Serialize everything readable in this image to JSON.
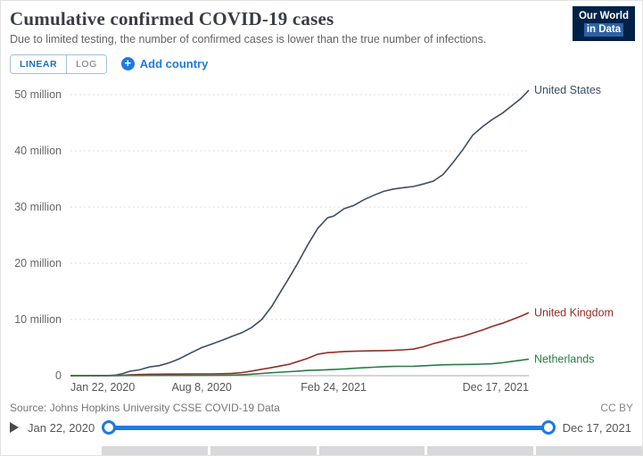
{
  "header": {
    "title": "Cumulative confirmed COVID-19 cases",
    "subtitle": "Due to limited testing, the number of confirmed cases is lower than the true number of infections.",
    "logo": {
      "line1": "Our World",
      "line2": "in Data"
    }
  },
  "controls": {
    "linear": "LINEAR",
    "log": "LOG",
    "add_country": "Add country"
  },
  "chart_data": {
    "type": "line",
    "title": "Cumulative confirmed COVID-19 cases",
    "x_unit": "days since Jan 22, 2020",
    "y_unit": "million cases",
    "x_range": [
      0,
      695
    ],
    "ylim": [
      0,
      52
    ],
    "grid": "horizontal-dashed",
    "legend_position": "line-end-labels",
    "y_ticks": [
      {
        "value": 0,
        "label": "0"
      },
      {
        "value": 10,
        "label": "10 million"
      },
      {
        "value": 20,
        "label": "20 million"
      },
      {
        "value": 30,
        "label": "30 million"
      },
      {
        "value": 40,
        "label": "40 million"
      },
      {
        "value": 50,
        "label": "50 million"
      }
    ],
    "x_ticks": [
      {
        "value": 0,
        "label": "Jan 22, 2020"
      },
      {
        "value": 199,
        "label": "Aug 8, 2020"
      },
      {
        "value": 399,
        "label": "Feb 24, 2021"
      },
      {
        "value": 695,
        "label": "Dec 17, 2021"
      }
    ],
    "series": [
      {
        "name": "United States",
        "color": "#3c4e66",
        "points": [
          [
            0,
            0
          ],
          [
            45,
            0.003
          ],
          [
            60,
            0.03
          ],
          [
            70,
            0.12
          ],
          [
            80,
            0.4
          ],
          [
            90,
            0.8
          ],
          [
            105,
            1.05
          ],
          [
            120,
            1.55
          ],
          [
            135,
            1.8
          ],
          [
            150,
            2.3
          ],
          [
            165,
            3.0
          ],
          [
            180,
            3.9
          ],
          [
            199,
            5.0
          ],
          [
            215,
            5.65
          ],
          [
            230,
            6.3
          ],
          [
            245,
            7.0
          ],
          [
            260,
            7.65
          ],
          [
            275,
            8.6
          ],
          [
            290,
            10.0
          ],
          [
            305,
            12.3
          ],
          [
            320,
            15.2
          ],
          [
            332,
            17.5
          ],
          [
            344,
            19.9
          ],
          [
            360,
            23.3
          ],
          [
            375,
            26.2
          ],
          [
            390,
            28.1
          ],
          [
            399,
            28.4
          ],
          [
            415,
            29.7
          ],
          [
            430,
            30.3
          ],
          [
            445,
            31.3
          ],
          [
            460,
            32.1
          ],
          [
            475,
            32.8
          ],
          [
            490,
            33.2
          ],
          [
            505,
            33.45
          ],
          [
            520,
            33.65
          ],
          [
            535,
            34.1
          ],
          [
            550,
            34.6
          ],
          [
            565,
            35.8
          ],
          [
            580,
            37.9
          ],
          [
            595,
            40.2
          ],
          [
            610,
            42.8
          ],
          [
            625,
            44.3
          ],
          [
            640,
            45.6
          ],
          [
            655,
            46.7
          ],
          [
            670,
            48.1
          ],
          [
            683,
            49.3
          ],
          [
            695,
            50.8
          ]
        ]
      },
      {
        "name": "United Kingdom",
        "color": "#942e27",
        "points": [
          [
            0,
            0
          ],
          [
            60,
            0.005
          ],
          [
            75,
            0.03
          ],
          [
            90,
            0.14
          ],
          [
            105,
            0.21
          ],
          [
            120,
            0.25
          ],
          [
            135,
            0.27
          ],
          [
            150,
            0.28
          ],
          [
            165,
            0.29
          ],
          [
            180,
            0.3
          ],
          [
            199,
            0.31
          ],
          [
            215,
            0.32
          ],
          [
            230,
            0.35
          ],
          [
            245,
            0.41
          ],
          [
            260,
            0.55
          ],
          [
            275,
            0.83
          ],
          [
            290,
            1.15
          ],
          [
            305,
            1.45
          ],
          [
            320,
            1.77
          ],
          [
            332,
            2.05
          ],
          [
            344,
            2.5
          ],
          [
            360,
            3.1
          ],
          [
            375,
            3.83
          ],
          [
            390,
            4.1
          ],
          [
            399,
            4.16
          ],
          [
            415,
            4.3
          ],
          [
            430,
            4.35
          ],
          [
            445,
            4.4
          ],
          [
            460,
            4.43
          ],
          [
            475,
            4.46
          ],
          [
            490,
            4.5
          ],
          [
            505,
            4.6
          ],
          [
            520,
            4.73
          ],
          [
            535,
            5.15
          ],
          [
            550,
            5.7
          ],
          [
            565,
            6.15
          ],
          [
            580,
            6.6
          ],
          [
            595,
            7.0
          ],
          [
            610,
            7.57
          ],
          [
            625,
            8.15
          ],
          [
            640,
            8.8
          ],
          [
            655,
            9.33
          ],
          [
            670,
            10.0
          ],
          [
            683,
            10.6
          ],
          [
            695,
            11.2
          ]
        ]
      },
      {
        "name": "Netherlands",
        "color": "#2a7d46",
        "points": [
          [
            0,
            0
          ],
          [
            90,
            0.03
          ],
          [
            120,
            0.045
          ],
          [
            150,
            0.05
          ],
          [
            180,
            0.055
          ],
          [
            199,
            0.06
          ],
          [
            215,
            0.065
          ],
          [
            230,
            0.08
          ],
          [
            245,
            0.11
          ],
          [
            260,
            0.17
          ],
          [
            275,
            0.27
          ],
          [
            290,
            0.39
          ],
          [
            305,
            0.52
          ],
          [
            320,
            0.63
          ],
          [
            332,
            0.72
          ],
          [
            344,
            0.81
          ],
          [
            360,
            0.94
          ],
          [
            375,
            0.99
          ],
          [
            399,
            1.09
          ],
          [
            415,
            1.21
          ],
          [
            430,
            1.31
          ],
          [
            445,
            1.41
          ],
          [
            460,
            1.51
          ],
          [
            475,
            1.61
          ],
          [
            490,
            1.65
          ],
          [
            505,
            1.67
          ],
          [
            520,
            1.69
          ],
          [
            535,
            1.76
          ],
          [
            550,
            1.86
          ],
          [
            565,
            1.94
          ],
          [
            580,
            1.97
          ],
          [
            595,
            2.0
          ],
          [
            610,
            2.02
          ],
          [
            625,
            2.06
          ],
          [
            640,
            2.12
          ],
          [
            655,
            2.3
          ],
          [
            670,
            2.55
          ],
          [
            683,
            2.75
          ],
          [
            695,
            2.95
          ]
        ]
      }
    ]
  },
  "footer": {
    "source": "Source: Johns Hopkins University CSSE COVID-19 Data",
    "license": "CC BY"
  },
  "timeline": {
    "start": "Jan 22, 2020",
    "end": "Dec 17, 2021"
  },
  "colors": {
    "accent_blue": "#1d7ae2",
    "logo_navy": "#002147"
  }
}
